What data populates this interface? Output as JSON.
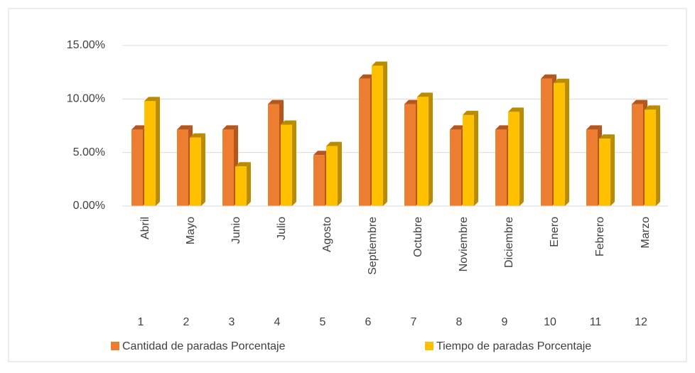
{
  "chart_data": {
    "type": "bar3d",
    "categories": [
      "Abril",
      "Mayo",
      "Junio",
      "Julio",
      "Agosto",
      "Septiembre",
      "Octubre",
      "Noviembre",
      "Diciembre",
      "Enero",
      "Febrero",
      "Marzo"
    ],
    "category_numbers": [
      1,
      2,
      3,
      4,
      5,
      6,
      7,
      8,
      9,
      10,
      11,
      12
    ],
    "series": [
      {
        "name": "Cantidad de paradas Porcentaje",
        "color": "#ED7D31",
        "side_color": "#B5561C",
        "values": [
          7.14,
          7.14,
          7.14,
          9.52,
          4.76,
          11.9,
          9.52,
          7.14,
          7.14,
          11.9,
          7.14,
          9.52
        ]
      },
      {
        "name": "Tiempo de paradas Porcentaje",
        "color": "#FFC000",
        "side_color": "#B98B00",
        "values": [
          9.8,
          6.4,
          3.7,
          7.6,
          5.6,
          13.1,
          10.2,
          8.5,
          8.8,
          11.5,
          6.3,
          9.0
        ]
      }
    ],
    "ylim": [
      0,
      15
    ],
    "yticks": [
      {
        "value": 0,
        "label": "0.00%"
      },
      {
        "value": 5,
        "label": "5.00%"
      },
      {
        "value": 10,
        "label": "10.00%"
      },
      {
        "value": 15,
        "label": "15.00%"
      }
    ],
    "grid": true,
    "legend": "bottom"
  }
}
